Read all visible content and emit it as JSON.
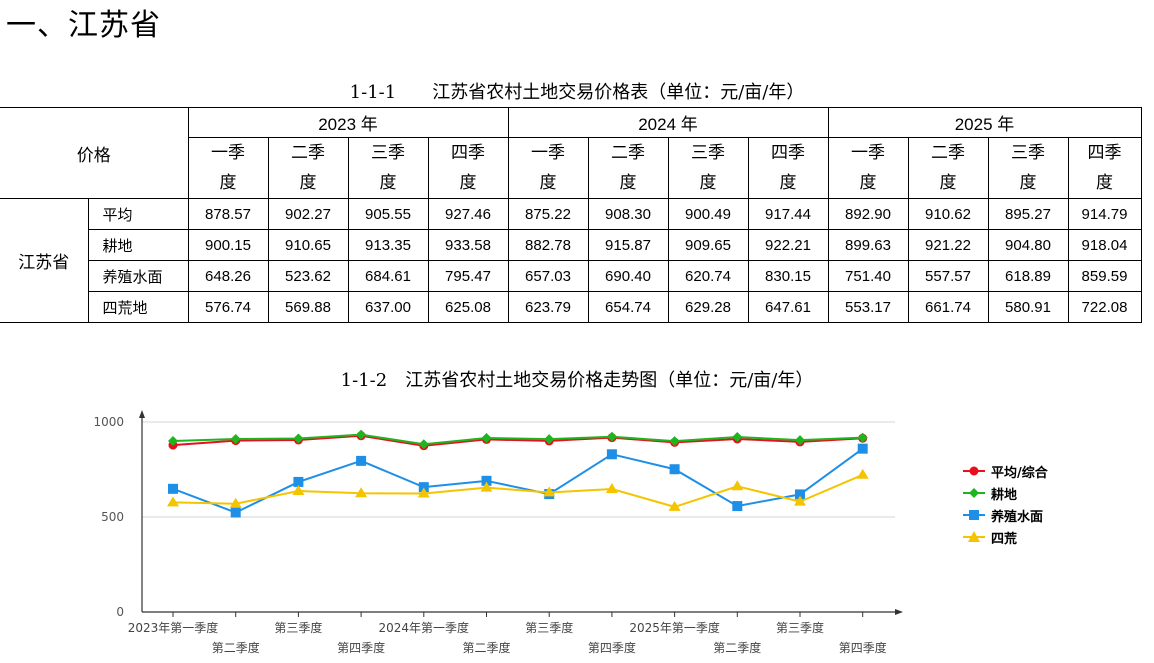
{
  "heading": "一、江苏省",
  "table_caption": "1-1-1　　江苏省农村土地交易价格表（单位：元/亩/年）",
  "chart_caption": "1-1-2　江苏省农村土地交易价格走势图（单位：元/亩/年）",
  "table": {
    "price_header": "价格",
    "region": "江苏省",
    "years": [
      "2023 年",
      "2024 年",
      "2025 年"
    ],
    "quarters": [
      {
        "a": "一季",
        "b": "度"
      },
      {
        "a": "二季",
        "b": "度"
      },
      {
        "a": "三季",
        "b": "度"
      },
      {
        "a": "四季",
        "b": "度"
      },
      {
        "a": "一季",
        "b": "度"
      },
      {
        "a": "二季",
        "b": "度"
      },
      {
        "a": "三季",
        "b": "度"
      },
      {
        "a": "四季",
        "b": "度"
      },
      {
        "a": "一季",
        "b": "度"
      },
      {
        "a": "二季",
        "b": "度"
      },
      {
        "a": "三季",
        "b": "度"
      },
      {
        "a": "四季",
        "b": "度"
      }
    ],
    "rows": [
      {
        "label": "平均",
        "values": [
          "878.57",
          "902.27",
          "905.55",
          "927.46",
          "875.22",
          "908.30",
          "900.49",
          "917.44",
          "892.90",
          "910.62",
          "895.27",
          "914.79"
        ]
      },
      {
        "label": "耕地",
        "values": [
          "900.15",
          "910.65",
          "913.35",
          "933.58",
          "882.78",
          "915.87",
          "909.65",
          "922.21",
          "899.63",
          "921.22",
          "904.80",
          "918.04"
        ]
      },
      {
        "label": "养殖水面",
        "values": [
          "648.26",
          "523.62",
          "684.61",
          "795.47",
          "657.03",
          "690.40",
          "620.74",
          "830.15",
          "751.40",
          "557.57",
          "618.89",
          "859.59"
        ]
      },
      {
        "label": "四荒地",
        "values": [
          "576.74",
          "569.88",
          "637.00",
          "625.08",
          "623.79",
          "654.74",
          "629.28",
          "647.61",
          "553.17",
          "661.74",
          "580.91",
          "722.08"
        ]
      }
    ]
  },
  "chart_data": {
    "type": "line",
    "x": [
      "2023年第一季度",
      "第二季度",
      "第三季度",
      "第四季度",
      "2024年第一季度",
      "第二季度",
      "第三季度",
      "第四季度",
      "2025年第一季度",
      "第二季度",
      "第三季度",
      "第四季度"
    ],
    "ylim": [
      0,
      1000
    ],
    "yticks": [
      "0",
      "500",
      "1000"
    ],
    "grid": true,
    "legend_position": "right",
    "series": [
      {
        "name": "平均/综合",
        "color": "#e8101e",
        "marker": "circle",
        "values": [
          878.57,
          902.27,
          905.55,
          927.46,
          875.22,
          908.3,
          900.49,
          917.44,
          892.9,
          910.62,
          895.27,
          914.79
        ]
      },
      {
        "name": "耕地",
        "color": "#1fb51f",
        "marker": "diamond",
        "values": [
          900.15,
          910.65,
          913.35,
          933.58,
          882.78,
          915.87,
          909.65,
          922.21,
          899.63,
          921.22,
          904.8,
          918.04
        ]
      },
      {
        "name": "养殖水面",
        "color": "#1e8fe6",
        "marker": "square",
        "values": [
          648.26,
          523.62,
          684.61,
          795.47,
          657.03,
          690.4,
          620.74,
          830.15,
          751.4,
          557.57,
          618.89,
          859.59
        ]
      },
      {
        "name": "四荒",
        "color": "#f5c400",
        "marker": "triangle",
        "values": [
          576.74,
          569.88,
          637.0,
          625.08,
          623.79,
          654.74,
          629.28,
          647.61,
          553.17,
          661.74,
          580.91,
          722.08
        ]
      }
    ]
  }
}
